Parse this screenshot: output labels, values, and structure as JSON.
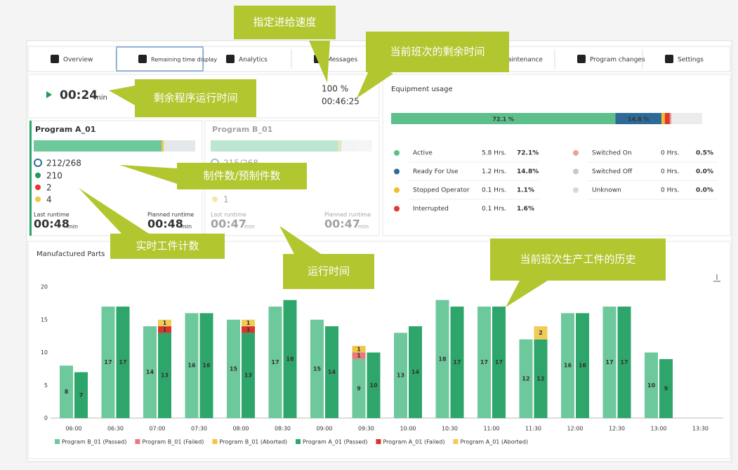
{
  "tabs": [
    "Overview",
    "Remaining time display",
    "Analytics",
    "Messages",
    "Maintenance",
    "Program changes",
    "Settings"
  ],
  "status": {
    "remaining": "00:24",
    "unit": "min",
    "feed_rate": "100 %",
    "shift_remaining": "00:46:25"
  },
  "programs": [
    {
      "name": "Program A_01",
      "parts": "212/268",
      "passed": "210",
      "failed": "2",
      "aborted": "4",
      "last_runtime_label": "Last runtime",
      "last_runtime": "00:48",
      "planned_runtime_label": "Planned runtime",
      "planned_runtime": "00:48"
    },
    {
      "name": "Program B_01",
      "parts": "215/268",
      "aborted": "1",
      "last_runtime_label": "Last runtime",
      "last_runtime": "00:47",
      "planned_runtime_label": "Planned runtime",
      "planned_runtime": "00:47"
    }
  ],
  "equipment_usage": {
    "title": "Equipment usage",
    "bar_labels": [
      "72.1 %",
      "14.8 %"
    ],
    "states": [
      {
        "name": "Active",
        "hours": "5.8 Hrs.",
        "share": 72.1,
        "share_label": "72.1%",
        "color": "#5dbf8b"
      },
      {
        "name": "Ready For Use",
        "hours": "1.2 Hrs.",
        "share": 14.8,
        "share_label": "14.8%",
        "color": "#2e6a98"
      },
      {
        "name": "Stopped Operator",
        "hours": "0.1 Hrs.",
        "share": 1.1,
        "share_label": "1.1%",
        "color": "#f2bd2c"
      },
      {
        "name": "Interrupted",
        "hours": "0.1 Hrs.",
        "share": 1.6,
        "share_label": "1.6%",
        "color": "#e0392f"
      },
      {
        "name": "Switched On",
        "hours": "0 Hrs.",
        "share": 0.5,
        "share_label": "0.5%",
        "color": "#e9a19a"
      },
      {
        "name": "Switched Off",
        "hours": "0 Hrs.",
        "share": 0.0,
        "share_label": "0.0%",
        "color": "#c8c8c8"
      },
      {
        "name": "Unknown",
        "hours": "0 Hrs.",
        "share": 0.0,
        "share_label": "0.0%",
        "color": "#d8d8d8"
      }
    ]
  },
  "chart_data": {
    "type": "bar",
    "title": "Manufactured Parts",
    "categories": [
      "06:00",
      "06:30",
      "07:00",
      "07:30",
      "08:00",
      "08:30",
      "09:00",
      "09:30",
      "10:00",
      "10:30",
      "11:00",
      "11:30",
      "12:00",
      "12:30",
      "13:00",
      "13:30"
    ],
    "series": [
      {
        "name": "Program B_01 (Passed)",
        "color": "#6dc89b",
        "values": [
          8,
          17,
          14,
          16,
          15,
          17,
          15,
          9,
          13,
          18,
          17,
          12,
          16,
          17,
          10,
          null
        ]
      },
      {
        "name": "Program B_01 (Failed)",
        "color": "#e87a7e",
        "values": [
          null,
          null,
          null,
          null,
          null,
          null,
          null,
          1,
          null,
          null,
          null,
          null,
          null,
          null,
          null,
          null
        ]
      },
      {
        "name": "Program B_01 (Aborted)",
        "color": "#efc64a",
        "values": [
          null,
          null,
          null,
          null,
          null,
          null,
          null,
          1,
          null,
          null,
          null,
          null,
          null,
          null,
          null,
          null
        ]
      },
      {
        "name": "Program A_01 (Passed)",
        "color": "#2ea66b",
        "values": [
          7,
          17,
          13,
          16,
          13,
          18,
          14,
          10,
          14,
          17,
          17,
          12,
          16,
          17,
          9,
          null
        ]
      },
      {
        "name": "Program A_01 (Failed)",
        "color": "#d8352c",
        "values": [
          null,
          null,
          1,
          null,
          1,
          null,
          null,
          null,
          null,
          null,
          null,
          null,
          null,
          null,
          null,
          null
        ]
      },
      {
        "name": "Program A_01 (Aborted)",
        "color": "#f0cb55",
        "values": [
          null,
          null,
          1,
          null,
          1,
          null,
          null,
          null,
          null,
          null,
          null,
          2,
          null,
          null,
          null,
          null
        ]
      }
    ],
    "ylim": [
      0,
      20
    ],
    "yticks": [
      0,
      5,
      10,
      15,
      20
    ],
    "grid": false
  },
  "callouts": [
    "指定进给速度",
    "当前班次的剩余时间",
    "剩余程序运行时间",
    "制件数/预制件数",
    "实时工件计数",
    "运行时间",
    "当前班次生产工件的历史"
  ]
}
